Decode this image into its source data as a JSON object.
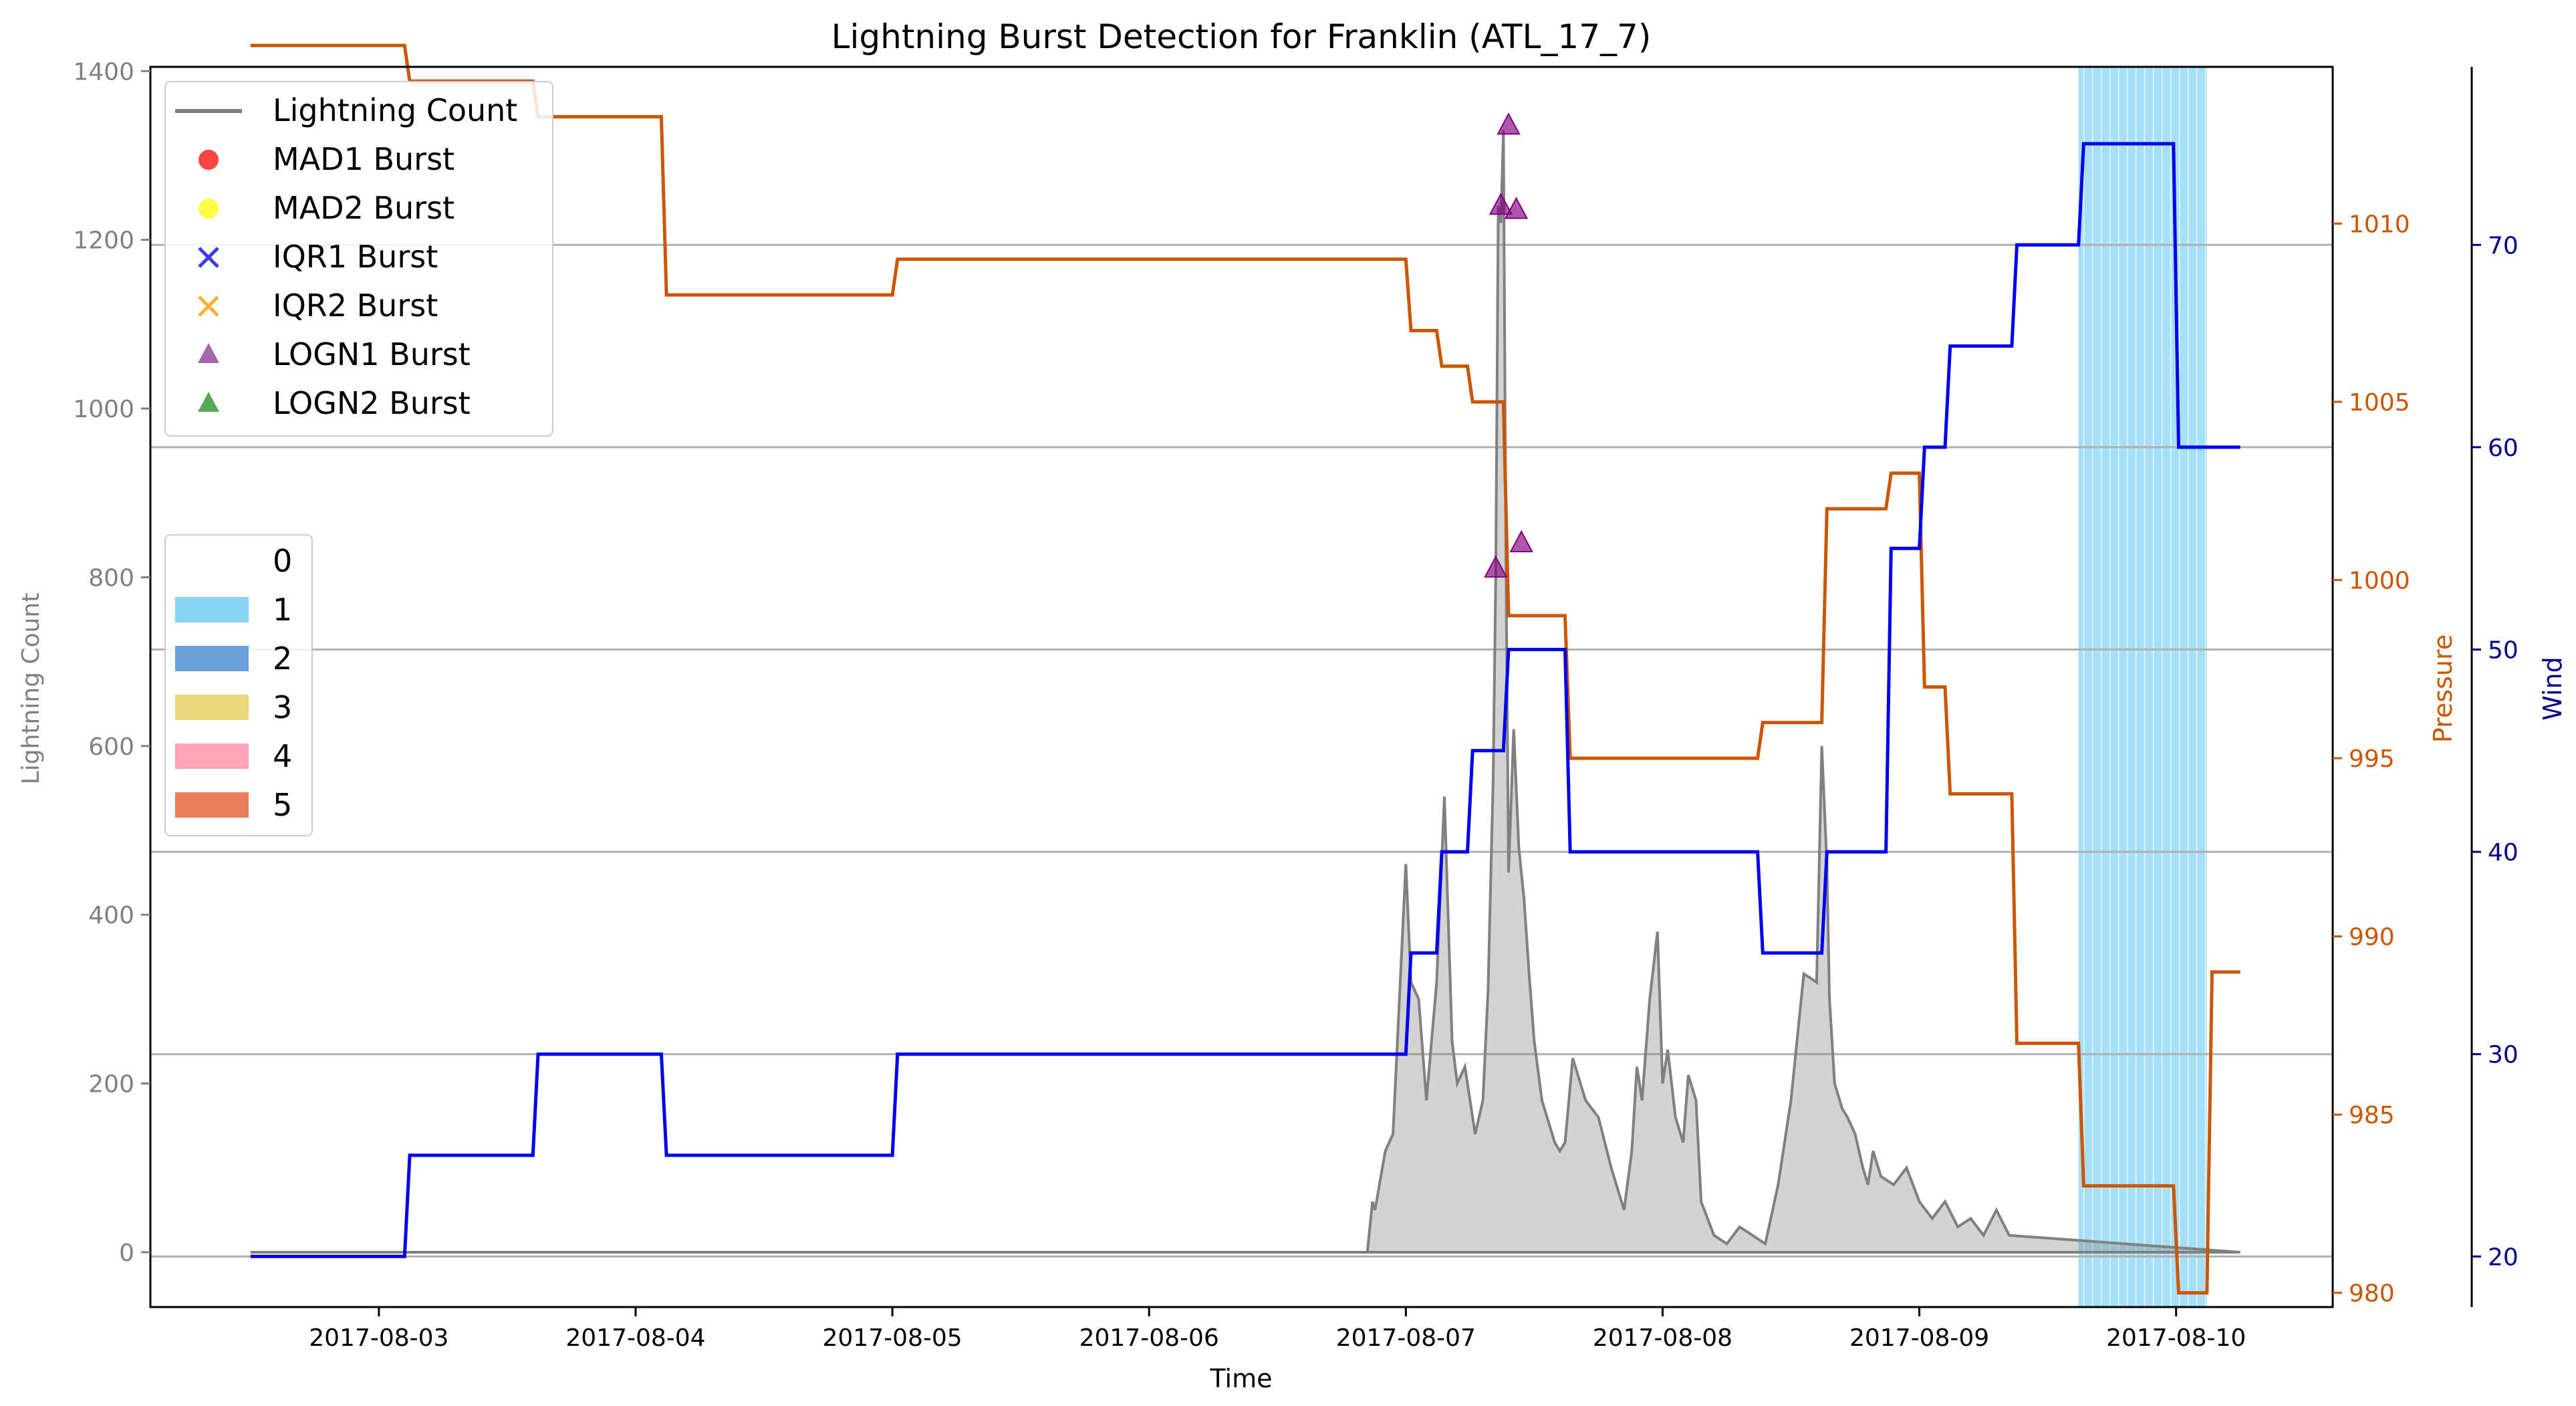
{
  "chart_data": {
    "type": "line",
    "title": "Lightning Burst Detection for Franklin (ATL_17_7)",
    "xlabel": "Time",
    "ylabel_left": "Lightning Count",
    "ylabel_pressure": "Pressure",
    "ylabel_wind": "Wind",
    "x_tick_labels": [
      "2017-08-03",
      "2017-08-04",
      "2017-08-05",
      "2017-08-06",
      "2017-08-07",
      "2017-08-08",
      "2017-08-09",
      "2017-08-10"
    ],
    "x_range_days": [
      -0.89,
      7.61
    ],
    "x_start_date": "2017-08-03",
    "y_left_ticks": [
      0,
      200,
      400,
      600,
      800,
      1000,
      1200,
      1400
    ],
    "y_left_range": [
      -65,
      1405
    ],
    "y_pressure_ticks": [
      980,
      985,
      990,
      995,
      1000,
      1005,
      1010
    ],
    "y_pressure_range": [
      979.6,
      1014.4
    ],
    "y_wind_ticks": [
      20,
      30,
      40,
      50,
      60,
      70
    ],
    "y_wind_range": [
      17.5,
      78.8
    ],
    "grid": "horizontal at wind ticks",
    "colors": {
      "lightning": "#808080",
      "pressure": "#cc5500",
      "wind": "#0000ee",
      "left_axis": "#808080",
      "pressure_axis": "#cc5500",
      "wind_axis": "#00008b",
      "category_1": "#87d4f5",
      "category_2": "#6a9fd9",
      "category_3": "#ecd97f",
      "category_4": "#ffa6b5",
      "category_5": "#ec7f5b",
      "logn1": "#800080"
    },
    "legend_series": [
      {
        "name": "Lightning Count",
        "marker": "line",
        "color": "#808080"
      },
      {
        "name": "MAD1 Burst",
        "marker": "circle",
        "color": "#ff3030"
      },
      {
        "name": "MAD2 Burst",
        "marker": "circle",
        "color": "#ffff30"
      },
      {
        "name": "IQR1 Burst",
        "marker": "x",
        "color": "#3a3aee"
      },
      {
        "name": "IQR2 Burst",
        "marker": "x",
        "color": "#ffb030"
      },
      {
        "name": "LOGN1 Burst",
        "marker": "triangle",
        "color": "#9a4a9a"
      },
      {
        "name": "LOGN2 Burst",
        "marker": "triangle",
        "color": "#3a9a3a"
      }
    ],
    "legend_categories": [
      {
        "label": "0",
        "color": "#ffffff"
      },
      {
        "label": "1",
        "color": "#87d4f5"
      },
      {
        "label": "2",
        "color": "#6a9fd9"
      },
      {
        "label": "3",
        "color": "#ecd97f"
      },
      {
        "label": "4",
        "color": "#ffa6b5"
      },
      {
        "label": "5",
        "color": "#ec7f5b"
      }
    ],
    "category_shading": [
      {
        "category": "1",
        "start_day": 6.62,
        "end_day": 7.12
      }
    ],
    "wind": {
      "x": [
        -0.5,
        0.1,
        0.12,
        0.6,
        0.62,
        1.1,
        1.12,
        2.0,
        2.02,
        4.0,
        4.02,
        4.12,
        4.14,
        4.24,
        4.26,
        4.38,
        4.4,
        4.62,
        4.64,
        5.37,
        5.39,
        5.62,
        5.64,
        5.87,
        5.89,
        6.0,
        6.02,
        6.1,
        6.12,
        6.36,
        6.38,
        6.62,
        6.64,
        6.99,
        7.01,
        7.12,
        7.14,
        7.25
      ],
      "y": [
        20,
        20,
        25,
        25,
        30,
        30,
        25,
        25,
        30,
        30,
        35,
        35,
        40,
        40,
        45,
        45,
        50,
        50,
        40,
        40,
        35,
        35,
        40,
        40,
        55,
        55,
        60,
        60,
        65,
        65,
        70,
        70,
        75,
        75,
        60,
        60,
        60,
        60
      ]
    },
    "pressure": {
      "x": [
        -0.5,
        0.1,
        0.12,
        0.6,
        0.62,
        1.1,
        1.12,
        2.0,
        2.02,
        4.0,
        4.02,
        4.12,
        4.14,
        4.24,
        4.26,
        4.38,
        4.4,
        4.62,
        4.64,
        5.37,
        5.39,
        5.62,
        5.64,
        5.87,
        5.89,
        6.0,
        6.02,
        6.1,
        6.12,
        6.36,
        6.38,
        6.62,
        6.64,
        6.99,
        7.01,
        7.12,
        7.14,
        7.25
      ],
      "y": [
        1015,
        1015,
        1014,
        1014,
        1013,
        1013,
        1008,
        1008,
        1009,
        1009,
        1007,
        1007,
        1006,
        1006,
        1005,
        1005,
        999,
        999,
        995,
        995,
        996,
        996,
        1002,
        1002,
        1003,
        1003,
        997,
        997,
        994,
        994,
        987,
        987,
        983,
        983,
        980,
        980,
        989,
        989
      ]
    },
    "lightning_envelope": {
      "x": [
        -0.5,
        3.85,
        3.87,
        3.88,
        3.92,
        3.95,
        4.0,
        4.02,
        4.05,
        4.08,
        4.12,
        4.15,
        4.18,
        4.2,
        4.23,
        4.27,
        4.3,
        4.32,
        4.34,
        4.35,
        4.36,
        4.37,
        4.38,
        4.39,
        4.4,
        4.42,
        4.44,
        4.46,
        4.48,
        4.5,
        4.53,
        4.56,
        4.58,
        4.6,
        4.62,
        4.65,
        4.7,
        4.75,
        4.8,
        4.85,
        4.88,
        4.9,
        4.92,
        4.95,
        4.98,
        5.0,
        5.02,
        5.05,
        5.08,
        5.1,
        5.13,
        5.15,
        5.2,
        5.25,
        5.3,
        5.35,
        5.4,
        5.45,
        5.5,
        5.55,
        5.6,
        5.62,
        5.64,
        5.65,
        5.67,
        5.7,
        5.72,
        5.75,
        5.78,
        5.8,
        5.82,
        5.85,
        5.9,
        5.95,
        6.0,
        6.05,
        6.1,
        6.15,
        6.2,
        6.25,
        6.3,
        6.35,
        7.25
      ],
      "y": [
        0,
        0,
        60,
        50,
        120,
        140,
        460,
        320,
        300,
        180,
        320,
        540,
        250,
        200,
        220,
        140,
        180,
        310,
        560,
        800,
        1240,
        1220,
        1330,
        820,
        450,
        620,
        480,
        420,
        330,
        250,
        180,
        150,
        130,
        120,
        130,
        230,
        180,
        160,
        100,
        50,
        120,
        220,
        180,
        300,
        380,
        200,
        240,
        160,
        130,
        210,
        180,
        60,
        20,
        10,
        30,
        20,
        10,
        80,
        180,
        330,
        320,
        600,
        460,
        300,
        200,
        170,
        160,
        140,
        100,
        80,
        120,
        90,
        80,
        100,
        60,
        40,
        60,
        30,
        40,
        20,
        50,
        20,
        0
      ]
    },
    "logn1_bursts": {
      "x": [
        4.35,
        4.37,
        4.4,
        4.43,
        4.45
      ],
      "y": [
        810,
        1240,
        1335,
        1235,
        840
      ]
    }
  }
}
